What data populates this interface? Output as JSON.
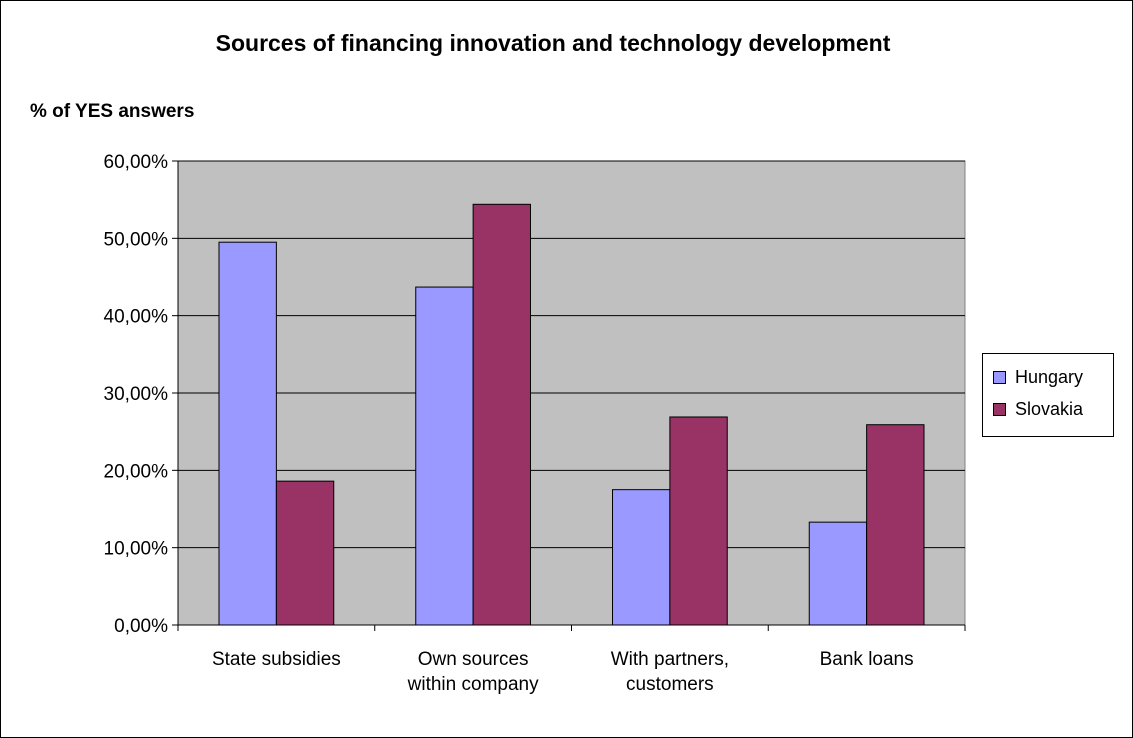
{
  "chart_data": {
    "type": "bar",
    "title": "Sources of financing innovation and technology development",
    "ylabel": "% of YES answers",
    "xlabel": "",
    "categories": [
      [
        "State subsidies"
      ],
      [
        "Own sources",
        "within company"
      ],
      [
        "With partners,",
        "customers"
      ],
      [
        "Bank loans"
      ]
    ],
    "series": [
      {
        "name": "Hungary",
        "color": "#9999ff",
        "values": [
          0.495,
          0.437,
          0.175,
          0.133
        ]
      },
      {
        "name": "Slovakia",
        "color": "#993366",
        "values": [
          0.186,
          0.544,
          0.269,
          0.259
        ]
      }
    ],
    "ylim": [
      0,
      0.6
    ],
    "yticks": [
      0,
      0.1,
      0.2,
      0.3,
      0.4,
      0.5,
      0.6
    ],
    "ytick_labels": [
      "0,00%",
      "10,00%",
      "20,00%",
      "30,00%",
      "40,00%",
      "50,00%",
      "60,00%"
    ],
    "plot_background": "#c0c0c0",
    "grid": true,
    "legend_position": "right"
  }
}
